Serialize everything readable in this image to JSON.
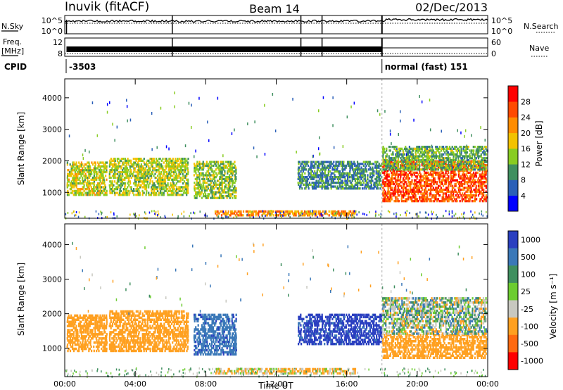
{
  "header": {
    "station": "Inuvik (fitACF)",
    "beam": "Beam 14",
    "date": "02/Dec/2013"
  },
  "status": {
    "nsky_label": "N.Sky",
    "nsearch_label": "N.Search",
    "freq_label": "Freq.",
    "freq_unit": "[MHz]",
    "nave_label": "Nave",
    "cpid_label": "CPID",
    "nsky_ticks": [
      "10^5",
      "10^0"
    ],
    "nsearch_ticks": [
      "10^5",
      "10^0"
    ],
    "freq_ticks": [
      "12",
      "8"
    ],
    "nave_ticks": [
      "60",
      "0"
    ],
    "cpid_segments": [
      {
        "start_hour": 0.0,
        "label": "-3503"
      },
      {
        "start_hour": 18.0,
        "label": "normal (fast) 151"
      }
    ],
    "mode_change_hour": 18.0,
    "glitch_hours": [
      6.1,
      13.4,
      14.6
    ]
  },
  "chart_data": [
    {
      "type": "heatmap",
      "name": "power",
      "ylabel": "Slant Range [km]",
      "xlabel": "",
      "xlim": [
        0,
        24
      ],
      "ylim": [
        180,
        4600
      ],
      "yticks": [
        "1000",
        "2000",
        "3000",
        "4000"
      ],
      "colorbar_label": "Power [dB]",
      "colorbar_ticks": [
        "4",
        "8",
        "12",
        "16",
        "20",
        "24",
        "28"
      ],
      "colorbar_colors": [
        "#0000ff",
        "#2a5fb8",
        "#3f8f5f",
        "#88cc22",
        "#f2c200",
        "#ff8c00",
        "#ff4a00",
        "#ff0000"
      ],
      "echo_regions": [
        {
          "x_start": 0.1,
          "x_end": 2.4,
          "range_min": 900,
          "range_max": 2000,
          "value": 16
        },
        {
          "x_start": 2.5,
          "x_end": 7.0,
          "range_min": 900,
          "range_max": 2100,
          "value": 15
        },
        {
          "x_start": 7.3,
          "x_end": 9.7,
          "range_min": 800,
          "range_max": 2000,
          "value": 14
        },
        {
          "x_start": 8.5,
          "x_end": 16.5,
          "range_min": 250,
          "range_max": 450,
          "value": 22
        },
        {
          "x_start": 13.2,
          "x_end": 18.0,
          "range_min": 1100,
          "range_max": 2000,
          "value": 9
        },
        {
          "x_start": 18.0,
          "x_end": 23.9,
          "range_min": 700,
          "range_max": 2000,
          "value": 26
        },
        {
          "x_start": 18.0,
          "x_end": 23.9,
          "range_min": 1700,
          "range_max": 2500,
          "value": 12
        }
      ]
    },
    {
      "type": "heatmap",
      "name": "velocity",
      "ylabel": "Slant Range [km]",
      "xlabel": "Time UT",
      "xlim": [
        0,
        24
      ],
      "ylim": [
        180,
        4600
      ],
      "xticks": [
        "00:00",
        "04:00",
        "08:00",
        "12:00",
        "16:00",
        "20:00",
        "00:00"
      ],
      "yticks": [
        "1000",
        "2000",
        "3000",
        "4000"
      ],
      "colorbar_label": "Velocity [m s⁻¹]",
      "colorbar_ticks": [
        "1000",
        "500",
        "100",
        "25",
        "-25",
        "-100",
        "-500",
        "-1000"
      ],
      "colorbar_colors": [
        "#2a3fc0",
        "#3a78b8",
        "#3f8f5f",
        "#6ccc30",
        "#c8c8c0",
        "#ffa020",
        "#ff6a10",
        "#ff0000"
      ],
      "echo_regions": [
        {
          "x_start": 0.1,
          "x_end": 2.4,
          "range_min": 900,
          "range_max": 2000,
          "value": -300
        },
        {
          "x_start": 2.5,
          "x_end": 7.0,
          "range_min": 900,
          "range_max": 2100,
          "value": -250
        },
        {
          "x_start": 7.3,
          "x_end": 9.7,
          "range_min": 800,
          "range_max": 2000,
          "value": 400
        },
        {
          "x_start": 8.5,
          "x_end": 16.5,
          "range_min": 250,
          "range_max": 450,
          "value": -120
        },
        {
          "x_start": 13.2,
          "x_end": 18.0,
          "range_min": 1100,
          "range_max": 2000,
          "value": 600
        },
        {
          "x_start": 18.0,
          "x_end": 23.9,
          "range_min": 700,
          "range_max": 1400,
          "value": -350
        },
        {
          "x_start": 18.0,
          "x_end": 23.9,
          "range_min": 1400,
          "range_max": 2500,
          "value": 0
        }
      ]
    }
  ]
}
